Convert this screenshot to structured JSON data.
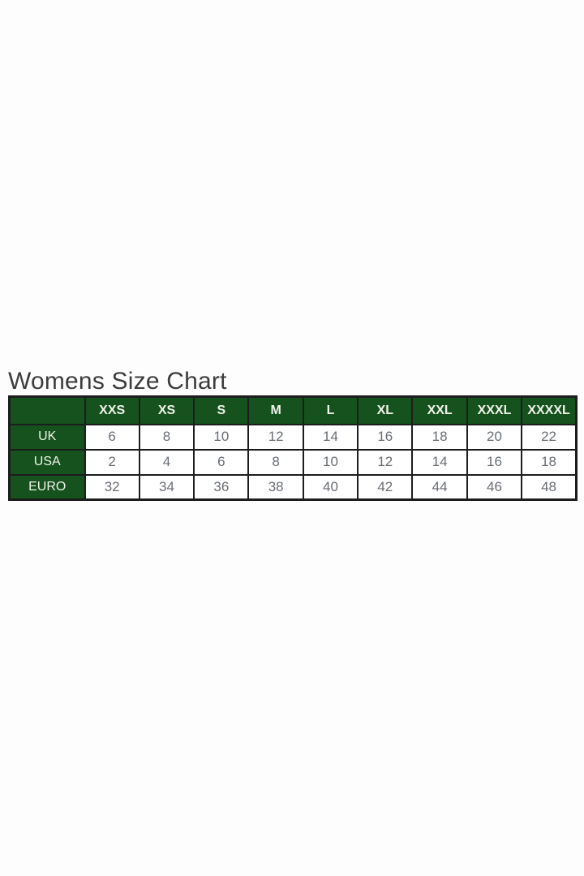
{
  "page": {
    "title": "Womens Size Chart"
  },
  "colors": {
    "background": "#fdfdfd",
    "header_green": "#15521e",
    "grid_border": "#1d1d1d",
    "value_text": "#686d74",
    "header_text": "#f1f3ea",
    "title_text": "#3c3c3c"
  },
  "chart_data": {
    "type": "table",
    "title": "Womens Size Chart",
    "columns": [
      "",
      "XXS",
      "XS",
      "S",
      "M",
      "L",
      "XL",
      "XXL",
      "XXXL",
      "XXXXL"
    ],
    "rows": [
      {
        "label": "UK",
        "values": [
          6,
          8,
          10,
          12,
          14,
          16,
          18,
          20,
          22
        ]
      },
      {
        "label": "USA",
        "values": [
          2,
          4,
          6,
          8,
          10,
          12,
          14,
          16,
          18
        ]
      },
      {
        "label": "EURO",
        "values": [
          32,
          34,
          36,
          38,
          40,
          42,
          44,
          46,
          48
        ]
      }
    ],
    "layout": {
      "header_row": "dark-green, white bold text",
      "label_column": "dark-green, white text",
      "grid": "on"
    }
  }
}
